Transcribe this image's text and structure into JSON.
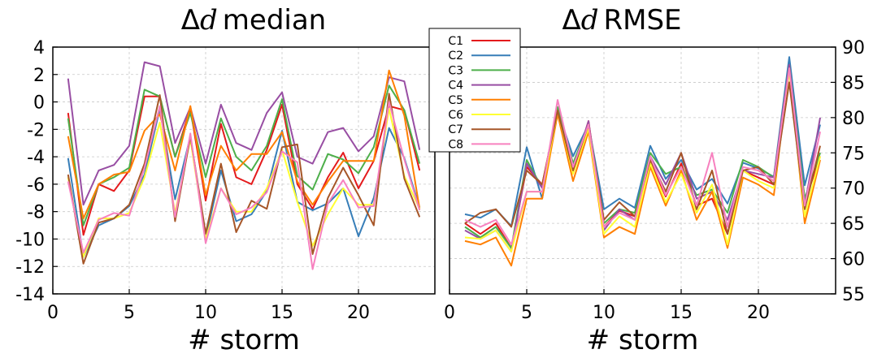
{
  "chart_data": [
    {
      "type": "line",
      "title_symbol": "Δ",
      "title_var": "d",
      "title_rest": "median",
      "xlabel": "# storm",
      "ylabel": "",
      "xlim": [
        0,
        25
      ],
      "ylim": [
        -14,
        4
      ],
      "xticks": [
        0,
        5,
        10,
        15,
        20
      ],
      "yticks": [
        4,
        2,
        0,
        -2,
        -4,
        -6,
        -8,
        -10,
        -12,
        -14
      ],
      "grid": true,
      "x": [
        1,
        2,
        3,
        4,
        5,
        6,
        7,
        8,
        9,
        10,
        11,
        12,
        13,
        14,
        15,
        16,
        17,
        18,
        19,
        20,
        21,
        22,
        23,
        24
      ],
      "series": [
        {
          "name": "C1",
          "color": "#e41a1c",
          "values": [
            -0.8,
            -9.7,
            -6,
            -6.5,
            -5,
            0.4,
            0.4,
            -4,
            -0.5,
            -7.2,
            -1.6,
            -5.5,
            -6,
            -3.5,
            -0.2,
            -6,
            -7.8,
            -5.5,
            -3.7,
            -6.3,
            -4.3,
            -0.3,
            -0.6,
            -5
          ]
        },
        {
          "name": "C2",
          "color": "#377eb8",
          "values": [
            -4.1,
            -11.3,
            -9,
            -8.5,
            -7.6,
            -5.3,
            -0.5,
            -7.1,
            -2.5,
            -9.9,
            -5,
            -8.7,
            -8.2,
            -6.5,
            -2.1,
            -7.3,
            -7.9,
            -7.4,
            -6.3,
            -9.8,
            -7,
            -1.9,
            -4.1,
            -7.7
          ]
        },
        {
          "name": "C3",
          "color": "#4daf4a",
          "values": [
            -1.2,
            -9,
            -6,
            -5.5,
            -4.8,
            0.9,
            0.4,
            -4,
            -0.8,
            -5.5,
            -1.2,
            -4,
            -5,
            -3.2,
            0.2,
            -5.4,
            -6.4,
            -3.8,
            -4.2,
            -5.2,
            -3.3,
            1.2,
            -0.6,
            -4.5
          ]
        },
        {
          "name": "C4",
          "color": "#984ea3",
          "values": [
            1.7,
            -7.5,
            -5,
            -4.6,
            -3.2,
            2.9,
            2.6,
            -3,
            -0.4,
            -4.5,
            -0.2,
            -3,
            -3.5,
            -0.8,
            0.7,
            -4,
            -4.5,
            -2.2,
            -1.9,
            -3.6,
            -2.5,
            1.8,
            1.5,
            -3.5
          ]
        },
        {
          "name": "C5",
          "color": "#ff7f00",
          "values": [
            -2.5,
            -8.5,
            -6,
            -5.3,
            -5.1,
            -2.1,
            -0.9,
            -5,
            -0.3,
            -6.8,
            -3.2,
            -5,
            -3.8,
            -3.8,
            -2.2,
            -5.8,
            -7.5,
            -5.8,
            -4.3,
            -4.3,
            -4.3,
            2.3,
            -1,
            -7.8
          ]
        },
        {
          "name": "C6",
          "color": "#ffff33",
          "values": [
            -5.5,
            -11.3,
            -8.5,
            -8.5,
            -8.1,
            -5.5,
            -1.5,
            -8.1,
            -2.7,
            -10,
            -6.3,
            -8,
            -8,
            -6.3,
            -3.5,
            -7.3,
            -10.5,
            -8.2,
            -6.3,
            -7.5,
            -7.5,
            -0.5,
            -5.4,
            -7.8
          ]
        },
        {
          "name": "C7",
          "color": "#a65628",
          "values": [
            -5.3,
            -11.8,
            -8.8,
            -8.5,
            -7.5,
            -4.5,
            0.5,
            -8.7,
            -2.5,
            -9.6,
            -4.5,
            -9.5,
            -7.2,
            -7.8,
            -3.3,
            -3.1,
            -11.1,
            -7,
            -4.8,
            -6.8,
            -9,
            0.6,
            -5.6,
            -8.4
          ]
        },
        {
          "name": "C8",
          "color": "#f781bf",
          "values": [
            -5.8,
            -11,
            -8.6,
            -8.1,
            -8.3,
            -4.8,
            -0.3,
            -8.4,
            -2.3,
            -10.3,
            -6.3,
            -8.2,
            -7.7,
            -6.6,
            -3.6,
            -4.4,
            -12.2,
            -7.4,
            -5.7,
            -7.7,
            -7.6,
            0,
            -4.2,
            -7.9
          ]
        }
      ]
    },
    {
      "type": "line",
      "title_symbol": "Δ",
      "title_var": "d",
      "title_rest": "RMSE",
      "xlabel": "# storm",
      "ylabel": "",
      "xlim": [
        0,
        25
      ],
      "ylim": [
        55,
        90
      ],
      "xticks": [
        0,
        5,
        10,
        15,
        20
      ],
      "yticks": [
        90,
        85,
        80,
        75,
        70,
        65,
        60,
        55
      ],
      "grid": true,
      "x": [
        1,
        2,
        3,
        4,
        5,
        6,
        7,
        8,
        9,
        10,
        11,
        12,
        13,
        14,
        15,
        16,
        17,
        18,
        19,
        20,
        21,
        22,
        23,
        24
      ],
      "series": [
        {
          "name": "C1",
          "color": "#e41a1c",
          "values": [
            65,
            63.5,
            65,
            61.5,
            73,
            70.5,
            81,
            72.5,
            79.5,
            64.5,
            66.8,
            66,
            73.8,
            68.8,
            73.5,
            67.5,
            68.5,
            63.5,
            72.5,
            71.5,
            70.5,
            87,
            68,
            74.5
          ]
        },
        {
          "name": "C2",
          "color": "#377eb8",
          "values": [
            66.3,
            65.8,
            67,
            64.6,
            75.8,
            68.5,
            81,
            74.5,
            79,
            67,
            68.5,
            67.2,
            76,
            71.3,
            74,
            69.8,
            71.3,
            67.8,
            73.6,
            72.8,
            71.6,
            88.6,
            70.4,
            79
          ]
        },
        {
          "name": "C3",
          "color": "#4daf4a",
          "values": [
            64.5,
            63,
            64.5,
            61.5,
            74,
            70,
            81.5,
            73.5,
            79,
            65,
            67,
            66.5,
            75,
            72,
            73,
            69,
            69.8,
            66.5,
            74,
            73,
            71.5,
            87.5,
            68.5,
            75
          ]
        },
        {
          "name": "C4",
          "color": "#984ea3",
          "values": [
            64,
            62.8,
            64,
            61,
            73.5,
            70,
            81,
            72.5,
            79.5,
            64,
            67,
            65.5,
            74.5,
            70.5,
            75,
            68.5,
            69.5,
            65.5,
            72.5,
            72,
            71.5,
            87.5,
            67.5,
            80
          ]
        },
        {
          "name": "C5",
          "color": "#ff7f00",
          "values": [
            62.5,
            62,
            63,
            59,
            68.5,
            68.5,
            80.5,
            71,
            78,
            63,
            64.5,
            63.5,
            73,
            67.5,
            72.5,
            65.5,
            69.5,
            61.5,
            71.5,
            70.5,
            69,
            87,
            65,
            74
          ]
        },
        {
          "name": "C6",
          "color": "#ffff33",
          "values": [
            63,
            62.8,
            64,
            61,
            69.5,
            69.5,
            81,
            72,
            78.5,
            63.5,
            66,
            64.5,
            73.5,
            68,
            72,
            66.5,
            70.5,
            62,
            72.5,
            71,
            70,
            86.5,
            66,
            74.5
          ]
        },
        {
          "name": "C7",
          "color": "#a65628",
          "values": [
            65,
            66.5,
            67,
            64.5,
            72.5,
            70.5,
            81,
            72.5,
            79,
            65.5,
            68,
            66,
            74,
            69.5,
            75,
            67,
            72.5,
            63.5,
            72.5,
            73,
            70.5,
            85,
            67,
            76
          ]
        },
        {
          "name": "C8",
          "color": "#f781bf",
          "values": [
            65.5,
            64.5,
            65.5,
            62,
            69.5,
            69.5,
            82.5,
            73,
            79,
            64.5,
            66.5,
            65.5,
            74.5,
            69,
            73,
            67.5,
            75,
            64.5,
            73,
            72.5,
            71,
            87,
            67.5,
            78
          ]
        }
      ]
    }
  ]
}
